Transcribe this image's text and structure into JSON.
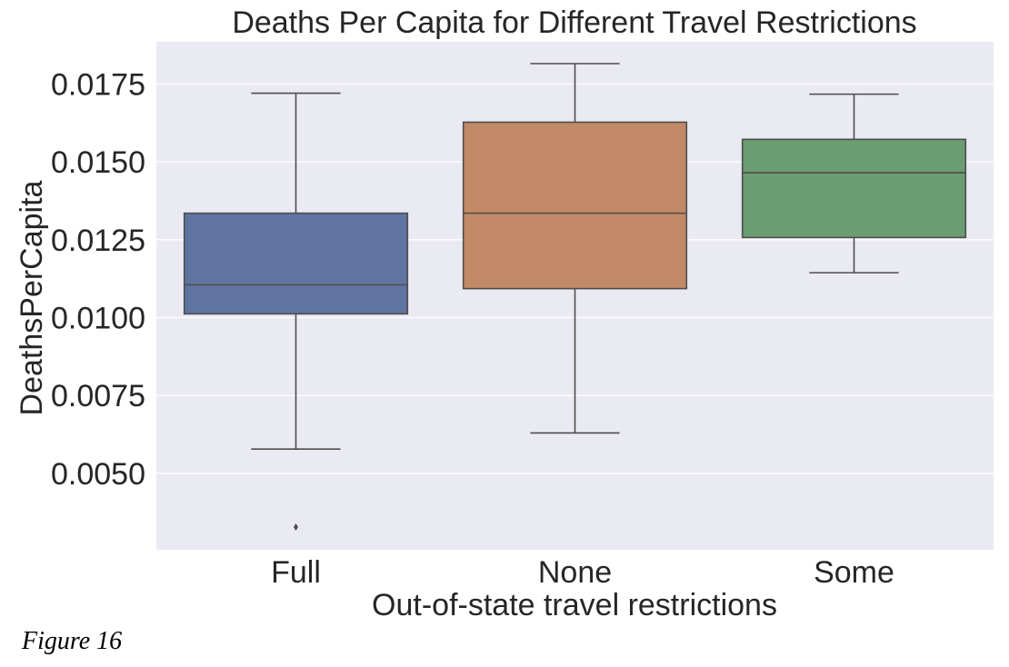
{
  "caption": "Figure 16",
  "chart_data": {
    "type": "box",
    "title": "Deaths Per Capita for Different Travel Restrictions",
    "xlabel": "Out-of-state travel restrictions",
    "ylabel": "DeathsPerCapita",
    "ylim": [
      0.00255,
      0.01885
    ],
    "yticks": [
      0.005,
      0.0075,
      0.01,
      0.0125,
      0.015,
      0.0175
    ],
    "ytick_labels": [
      "0.0050",
      "0.0075",
      "0.0100",
      "0.0125",
      "0.0150",
      "0.0175"
    ],
    "grid": true,
    "categories": [
      "Full",
      "None",
      "Some"
    ],
    "boxes": [
      {
        "category": "Full",
        "whisker_low": 0.00578,
        "q1": 0.01012,
        "median": 0.01105,
        "q3": 0.01335,
        "whisker_high": 0.0172,
        "outliers": [
          0.00328
        ],
        "color": "#5F74A0"
      },
      {
        "category": "None",
        "whisker_low": 0.0063,
        "q1": 0.01093,
        "median": 0.01335,
        "q3": 0.01627,
        "whisker_high": 0.01815,
        "outliers": [],
        "color": "#C28967"
      },
      {
        "category": "Some",
        "whisker_low": 0.01144,
        "q1": 0.01257,
        "median": 0.01465,
        "q3": 0.01572,
        "whisker_high": 0.01717,
        "outliers": [],
        "color": "#6B9D72"
      }
    ],
    "colors": {
      "background": "#EAEAF2",
      "grid": "#FFFFFF",
      "line": "#4D4D4D"
    }
  }
}
